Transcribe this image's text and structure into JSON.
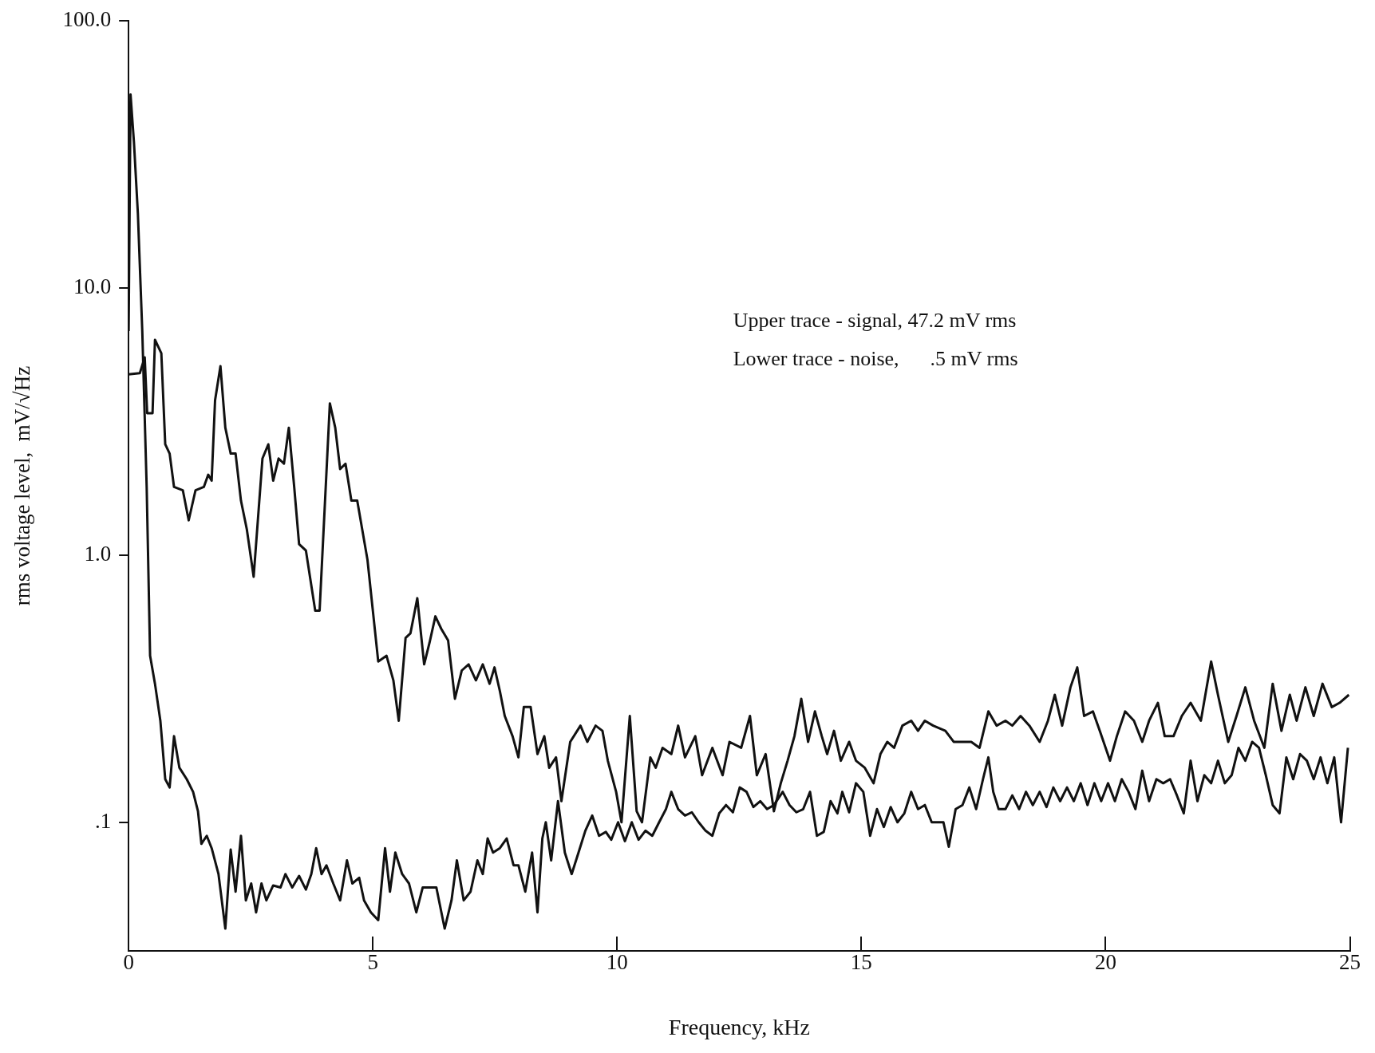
{
  "chart_data": {
    "type": "line",
    "xlabel": "Frequency, kHz",
    "ylabel": "rms voltage level,  mV/√Hz",
    "log": "y",
    "grid": false,
    "legend": false,
    "marker": "none",
    "line_style": "solid",
    "xlim": [
      0,
      25
    ],
    "xticks": [
      0,
      5,
      10,
      15,
      20,
      25
    ],
    "ylim": [
      0.033,
      100
    ],
    "yticks": [
      {
        "value": 0.1,
        "label": ".1"
      },
      {
        "value": 1,
        "label": "1.0"
      },
      {
        "value": 10,
        "label": "10.0"
      },
      {
        "value": 100,
        "label": "100.0"
      }
    ],
    "annotations": [
      "Upper trace - signal, 47.2 mV rms",
      "Lower trace - noise,      .5 mV rms"
    ],
    "series": [
      {
        "color": "#111111",
        "x": [
          0,
          0.23,
          0.33,
          0.38,
          0.49,
          0.54,
          0.67,
          0.75,
          0.84,
          0.93,
          1.11,
          1.23,
          1.37,
          1.54,
          1.63,
          1.7,
          1.77,
          1.88,
          1.98,
          2.09,
          2.19,
          2.3,
          2.42,
          2.56,
          2.74,
          2.86,
          2.96,
          3.07,
          3.18,
          3.28,
          3.39,
          3.49,
          3.63,
          3.82,
          3.91,
          4.12,
          4.23,
          4.33,
          4.44,
          4.56,
          4.68,
          4.89,
          5.11,
          5.28,
          5.42,
          5.53,
          5.67,
          5.77,
          5.91,
          6.05,
          6.16,
          6.28,
          6.4,
          6.54,
          6.68,
          6.82,
          6.96,
          7.11,
          7.25,
          7.39,
          7.49,
          7.6,
          7.7,
          7.86,
          7.98,
          8.09,
          8.23,
          8.37,
          8.51,
          8.61,
          8.75,
          8.86,
          9.04,
          9.25,
          9.39,
          9.56,
          9.7,
          9.81,
          9.98,
          10.09,
          10.26,
          10.4,
          10.51,
          10.68,
          10.79,
          10.93,
          11.11,
          11.25,
          11.39,
          11.6,
          11.74,
          11.95,
          12.16,
          12.3,
          12.54,
          12.72,
          12.86,
          13.04,
          13.21,
          13.35,
          13.49,
          13.63,
          13.77,
          13.91,
          14.05,
          14.19,
          14.3,
          14.44,
          14.58,
          14.75,
          14.89,
          15.07,
          15.25,
          15.39,
          15.53,
          15.67,
          15.84,
          16.02,
          16.16,
          16.3,
          16.47,
          16.72,
          16.89,
          17.25,
          17.42,
          17.6,
          17.77,
          17.95,
          18.09,
          18.26,
          18.44,
          18.65,
          18.82,
          18.96,
          19.11,
          19.28,
          19.42,
          19.56,
          19.74,
          19.88,
          20.09,
          20.23,
          20.4,
          20.58,
          20.75,
          20.89,
          21.07,
          21.21,
          21.39,
          21.56,
          21.74,
          21.95,
          22.16,
          22.3,
          22.51,
          22.68,
          22.86,
          23.04,
          23.25,
          23.42,
          23.6,
          23.77,
          23.91,
          24.09,
          24.26,
          24.44,
          24.63,
          24.79,
          24.98
        ],
        "values": [
          4.75,
          4.8,
          5.5,
          3.4,
          3.4,
          6.4,
          5.7,
          2.6,
          2.4,
          1.8,
          1.75,
          1.35,
          1.75,
          1.8,
          2.0,
          1.9,
          3.8,
          5.1,
          3.0,
          2.4,
          2.4,
          1.6,
          1.25,
          0.83,
          2.3,
          2.6,
          1.9,
          2.3,
          2.2,
          3.0,
          1.8,
          1.1,
          1.04,
          0.62,
          0.62,
          3.7,
          3.0,
          2.1,
          2.2,
          1.6,
          1.6,
          0.96,
          0.4,
          0.42,
          0.34,
          0.24,
          0.49,
          0.51,
          0.69,
          0.39,
          0.47,
          0.59,
          0.53,
          0.48,
          0.29,
          0.37,
          0.39,
          0.34,
          0.39,
          0.33,
          0.38,
          0.31,
          0.25,
          0.21,
          0.175,
          0.27,
          0.27,
          0.18,
          0.21,
          0.16,
          0.175,
          0.12,
          0.2,
          0.23,
          0.2,
          0.23,
          0.22,
          0.17,
          0.13,
          0.1,
          0.25,
          0.11,
          0.1,
          0.175,
          0.16,
          0.19,
          0.18,
          0.23,
          0.175,
          0.21,
          0.15,
          0.19,
          0.15,
          0.2,
          0.19,
          0.25,
          0.15,
          0.18,
          0.11,
          0.14,
          0.17,
          0.21,
          0.29,
          0.2,
          0.26,
          0.21,
          0.18,
          0.22,
          0.17,
          0.2,
          0.17,
          0.16,
          0.14,
          0.18,
          0.2,
          0.19,
          0.23,
          0.24,
          0.22,
          0.24,
          0.23,
          0.22,
          0.2,
          0.2,
          0.19,
          0.26,
          0.23,
          0.24,
          0.23,
          0.25,
          0.23,
          0.2,
          0.24,
          0.3,
          0.23,
          0.32,
          0.38,
          0.25,
          0.26,
          0.22,
          0.17,
          0.21,
          0.26,
          0.24,
          0.2,
          0.24,
          0.28,
          0.21,
          0.21,
          0.25,
          0.28,
          0.24,
          0.4,
          0.3,
          0.2,
          0.25,
          0.32,
          0.24,
          0.19,
          0.33,
          0.22,
          0.3,
          0.24,
          0.32,
          0.25,
          0.33,
          0.27,
          0.28,
          0.3
        ]
      },
      {
        "color": "#111111",
        "x": [
          0,
          0.04,
          0.11,
          0.19,
          0.28,
          0.37,
          0.44,
          0.54,
          0.65,
          0.75,
          0.84,
          0.93,
          1.04,
          1.19,
          1.32,
          1.42,
          1.49,
          1.6,
          1.7,
          1.84,
          1.98,
          2.09,
          2.19,
          2.3,
          2.4,
          2.51,
          2.61,
          2.72,
          2.82,
          2.96,
          3.11,
          3.21,
          3.35,
          3.49,
          3.63,
          3.74,
          3.84,
          3.95,
          4.05,
          4.19,
          4.33,
          4.47,
          4.58,
          4.72,
          4.82,
          4.96,
          5.11,
          5.25,
          5.35,
          5.46,
          5.6,
          5.74,
          5.89,
          6.02,
          6.16,
          6.3,
          6.47,
          6.61,
          6.72,
          6.86,
          7.0,
          7.14,
          7.25,
          7.35,
          7.46,
          7.6,
          7.74,
          7.88,
          7.98,
          8.12,
          8.26,
          8.37,
          8.47,
          8.54,
          8.65,
          8.79,
          8.93,
          9.07,
          9.21,
          9.35,
          9.49,
          9.63,
          9.77,
          9.88,
          10.02,
          10.16,
          10.3,
          10.44,
          10.58,
          10.72,
          10.86,
          11.0,
          11.11,
          11.25,
          11.39,
          11.53,
          11.67,
          11.81,
          11.95,
          12.09,
          12.23,
          12.37,
          12.51,
          12.65,
          12.79,
          12.93,
          13.07,
          13.21,
          13.39,
          13.53,
          13.67,
          13.81,
          13.95,
          14.09,
          14.23,
          14.37,
          14.51,
          14.61,
          14.75,
          14.89,
          15.04,
          15.18,
          15.32,
          15.46,
          15.6,
          15.74,
          15.88,
          16.02,
          16.16,
          16.3,
          16.44,
          16.58,
          16.68,
          16.79,
          16.93,
          17.07,
          17.21,
          17.35,
          17.49,
          17.6,
          17.7,
          17.81,
          17.95,
          18.09,
          18.23,
          18.37,
          18.51,
          18.65,
          18.79,
          18.93,
          19.07,
          19.21,
          19.35,
          19.49,
          19.63,
          19.77,
          19.91,
          20.05,
          20.19,
          20.33,
          20.47,
          20.61,
          20.75,
          20.89,
          21.04,
          21.18,
          21.32,
          21.46,
          21.6,
          21.74,
          21.88,
          22.02,
          22.16,
          22.3,
          22.44,
          22.58,
          22.72,
          22.86,
          23.0,
          23.14,
          23.28,
          23.42,
          23.56,
          23.7,
          23.84,
          23.98,
          24.12,
          24.26,
          24.4,
          24.54,
          24.68,
          24.82,
          24.96
        ],
        "values": [
          6.9,
          53,
          35,
          19,
          6.9,
          1.8,
          0.42,
          0.33,
          0.24,
          0.145,
          0.135,
          0.21,
          0.16,
          0.145,
          0.13,
          0.11,
          0.083,
          0.089,
          0.08,
          0.064,
          0.04,
          0.079,
          0.055,
          0.089,
          0.051,
          0.059,
          0.046,
          0.059,
          0.051,
          0.058,
          0.057,
          0.064,
          0.057,
          0.063,
          0.056,
          0.064,
          0.08,
          0.064,
          0.069,
          0.059,
          0.051,
          0.072,
          0.059,
          0.062,
          0.051,
          0.046,
          0.043,
          0.08,
          0.055,
          0.077,
          0.064,
          0.059,
          0.046,
          0.057,
          0.057,
          0.057,
          0.04,
          0.051,
          0.072,
          0.051,
          0.055,
          0.072,
          0.064,
          0.087,
          0.077,
          0.08,
          0.087,
          0.069,
          0.069,
          0.055,
          0.077,
          0.046,
          0.087,
          0.1,
          0.072,
          0.12,
          0.077,
          0.064,
          0.077,
          0.093,
          0.106,
          0.089,
          0.092,
          0.086,
          0.1,
          0.085,
          0.1,
          0.086,
          0.093,
          0.089,
          0.1,
          0.112,
          0.13,
          0.112,
          0.106,
          0.109,
          0.1,
          0.093,
          0.089,
          0.108,
          0.116,
          0.109,
          0.135,
          0.13,
          0.114,
          0.12,
          0.112,
          0.116,
          0.13,
          0.116,
          0.109,
          0.112,
          0.13,
          0.089,
          0.092,
          0.12,
          0.108,
          0.13,
          0.109,
          0.14,
          0.13,
          0.089,
          0.112,
          0.096,
          0.114,
          0.1,
          0.108,
          0.13,
          0.112,
          0.116,
          0.1,
          0.1,
          0.1,
          0.081,
          0.112,
          0.116,
          0.135,
          0.112,
          0.145,
          0.175,
          0.13,
          0.112,
          0.112,
          0.126,
          0.112,
          0.13,
          0.116,
          0.13,
          0.114,
          0.135,
          0.12,
          0.135,
          0.12,
          0.14,
          0.116,
          0.14,
          0.12,
          0.14,
          0.12,
          0.145,
          0.13,
          0.112,
          0.156,
          0.12,
          0.145,
          0.14,
          0.145,
          0.126,
          0.108,
          0.17,
          0.12,
          0.15,
          0.14,
          0.17,
          0.14,
          0.15,
          0.19,
          0.17,
          0.2,
          0.19,
          0.15,
          0.116,
          0.108,
          0.175,
          0.145,
          0.18,
          0.17,
          0.145,
          0.175,
          0.14,
          0.175,
          0.1,
          0.19
        ]
      }
    ]
  }
}
